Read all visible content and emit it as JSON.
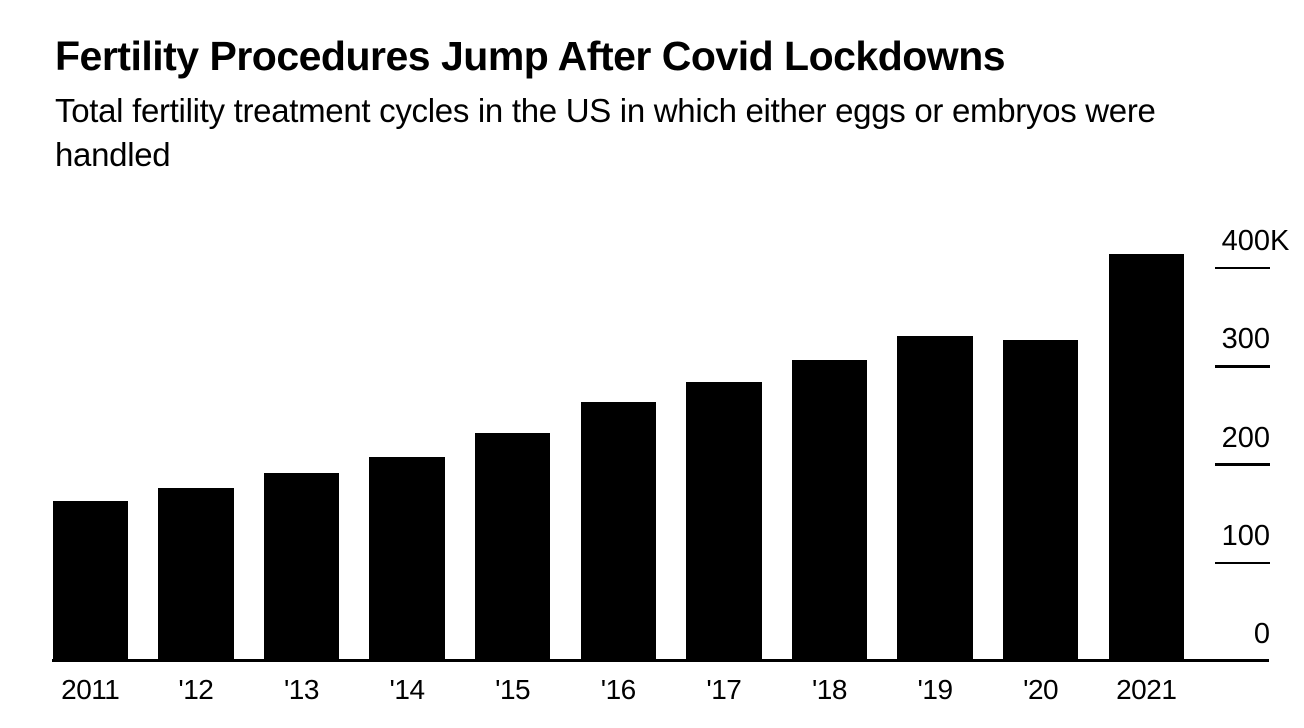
{
  "page": {
    "background": "#ffffff",
    "text_color": "#000000"
  },
  "header": {
    "title": "Fertility Procedures Jump After Covid Lockdowns",
    "subtitle_lines": [
      "Total fertility treatment cycles in the US in which either eggs or embryos were",
      "handled"
    ]
  },
  "chart_data": {
    "type": "bar",
    "title": "Fertility Procedures Jump After Covid Lockdowns",
    "subtitle": "Total fertility treatment cycles in the US in which either eggs or embryos were handled",
    "unit": "cycles, thousands",
    "categories": [
      "2011",
      "'12",
      "'13",
      "'14",
      "'15",
      "'16",
      "'17",
      "'18",
      "'19",
      "'20",
      "2021"
    ],
    "values": [
      163,
      176,
      191,
      208,
      232,
      264,
      284,
      306,
      331,
      327,
      414
    ],
    "bar_color": "#000000",
    "background": "#ffffff",
    "grid": false,
    "legend": false,
    "xlabel": "",
    "ylabel": "",
    "y_axis": {
      "side": "right",
      "ylim": [
        0,
        420
      ],
      "ticks": [
        {
          "value": 0,
          "label": "0",
          "suffix": ""
        },
        {
          "value": 100,
          "label": "100",
          "suffix": ""
        },
        {
          "value": 200,
          "label": "200",
          "suffix": ""
        },
        {
          "value": 300,
          "label": "300",
          "suffix": ""
        },
        {
          "value": 400,
          "label": "400",
          "suffix": "K"
        }
      ]
    }
  }
}
